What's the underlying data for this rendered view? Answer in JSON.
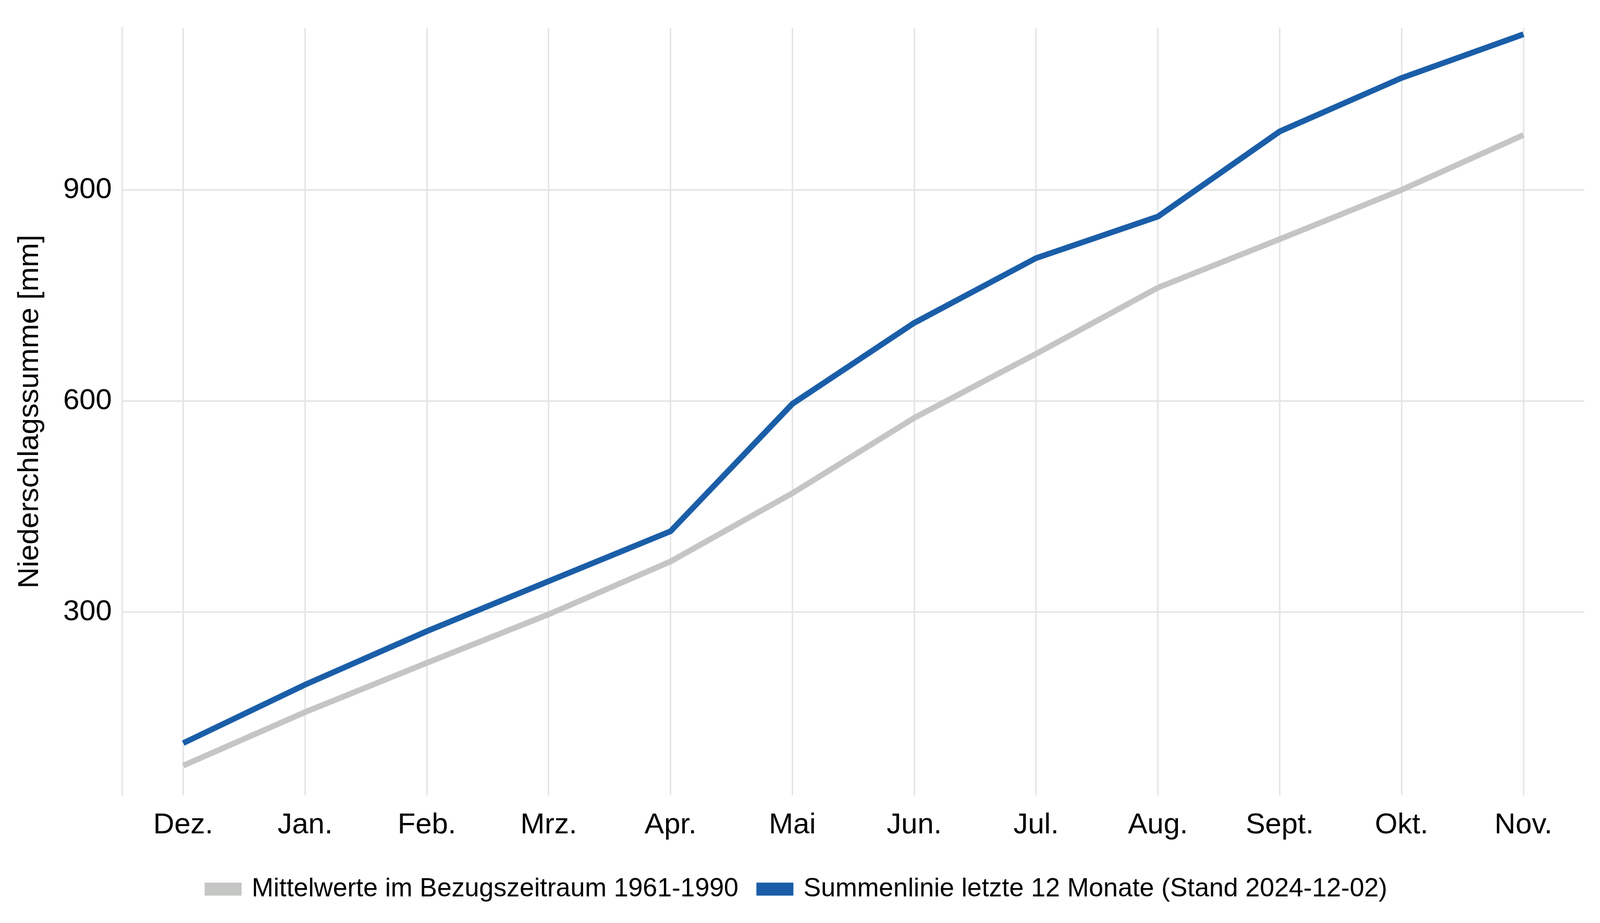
{
  "chart_data": {
    "type": "line",
    "y_label": "Niederschlagssumme [mm]",
    "categories": [
      "Dez.",
      "Jan.",
      "Feb.",
      "Mrz.",
      "Apr.",
      "Mai",
      "Jun.",
      "Jul.",
      "Aug.",
      "Sept.",
      "Okt.",
      "Nov."
    ],
    "series": [
      {
        "name": "Mittelwerte im Bezugszeitraum 1961-1990",
        "color": "#c4c6c4",
        "values": [
          82,
          158,
          228,
          297,
          372,
          469,
          576,
          667,
          761,
          830,
          900,
          978
        ]
      },
      {
        "name": "Summenlinie letzte 12 Monate (Stand 2024-12-02)",
        "color": "#1a5ea8",
        "values": [
          114,
          197,
          273,
          344,
          415,
          596,
          711,
          803,
          862,
          983,
          1059,
          1121
        ]
      }
    ],
    "ylim": [
      40,
      1130
    ],
    "yticks": [
      300,
      600,
      900
    ],
    "grid": true,
    "legend": "bottom"
  }
}
